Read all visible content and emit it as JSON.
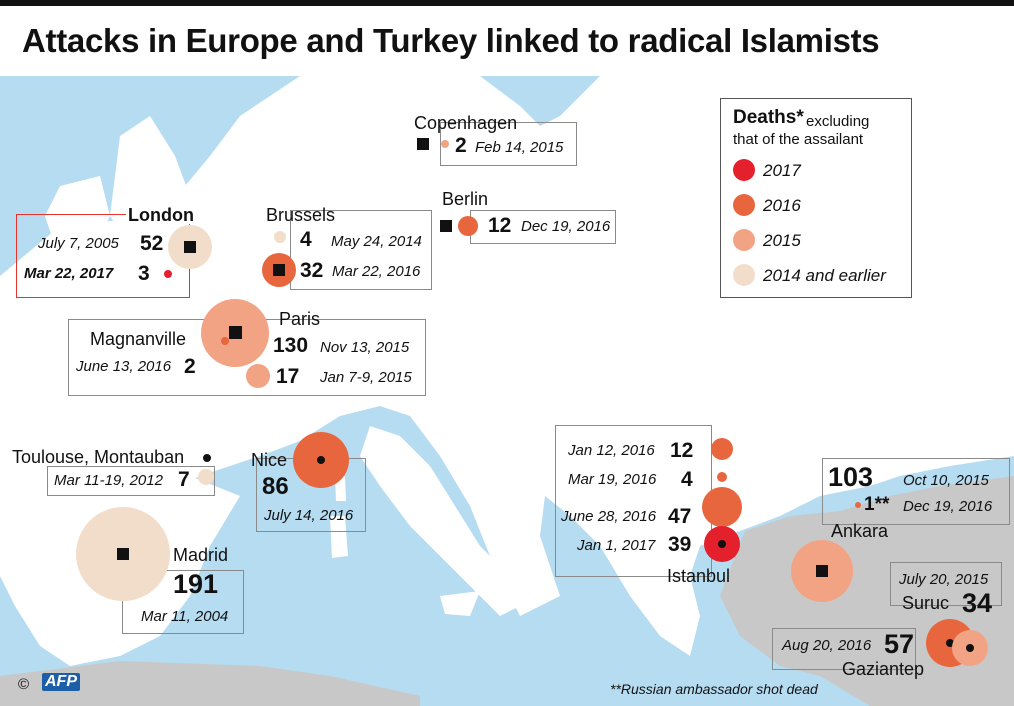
{
  "title": "Attacks in Europe and Turkey linked to radical Islamists",
  "colors": {
    "sea": "#b6dcf1",
    "land": "#ffffff",
    "turkey": "#c8c8c8",
    "y2017": "#e3202b",
    "y2016": "#e8663d",
    "y2015": "#f2a383",
    "y2014": "#f1ddc9"
  },
  "legend": {
    "title": "Deaths*",
    "subtitle_a": "excluding",
    "subtitle_b": "that of the assailant",
    "items": [
      {
        "label": "2017",
        "color": "#e3202b"
      },
      {
        "label": "2016",
        "color": "#e8663d"
      },
      {
        "label": "2015",
        "color": "#f2a383"
      },
      {
        "label": "2014 and earlier",
        "color": "#f1ddc9"
      }
    ]
  },
  "places": {
    "copenhagen": {
      "name": "Copenhagen",
      "count": "2",
      "date": "Feb 14, 2015"
    },
    "berlin": {
      "name": "Berlin",
      "count": "12",
      "date": "Dec 19, 2016"
    },
    "brussels": {
      "name": "Brussels",
      "count_a": "4",
      "date_a": "May 24, 2014",
      "count_b": "32",
      "date_b": "Mar 22, 2016"
    },
    "london": {
      "name": "London",
      "date_a": "July 7, 2005",
      "count_a": "52",
      "date_b": "Mar 22, 2017",
      "count_b": "3"
    },
    "paris": {
      "name": "Paris",
      "count_a": "130",
      "date_a": "Nov 13, 2015",
      "count_b": "17",
      "date_b": "Jan 7-9, 2015"
    },
    "magnanville": {
      "name": "Magnanville",
      "date": "June 13, 2016",
      "count": "2"
    },
    "toulouse": {
      "name": "Toulouse, Montauban",
      "date": "Mar 11-19, 2012",
      "count": "7"
    },
    "nice": {
      "name": "Nice",
      "count": "86",
      "date": "July 14, 2016"
    },
    "madrid": {
      "name": "Madrid",
      "count": "191",
      "date": "Mar 11, 2004"
    },
    "istanbul": {
      "name": "Istanbul",
      "events": [
        {
          "date": "Jan 12, 2016",
          "count": "12"
        },
        {
          "date": "Mar 19, 2016",
          "count": "4"
        },
        {
          "date": "June 28, 2016",
          "count": "47"
        },
        {
          "date": "Jan 1, 2017",
          "count": "39"
        }
      ]
    },
    "ankara": {
      "name": "Ankara",
      "count_a": "103",
      "date_a": "Oct 10, 2015",
      "count_b": "1**",
      "date_b": "Dec 19, 2016"
    },
    "suruc": {
      "name": "Suruc",
      "date": "July 20, 2015",
      "count": "34"
    },
    "gaziantep": {
      "name": "Gaziantep",
      "date": "Aug 20, 2016",
      "count": "57"
    }
  },
  "footnote": "**Russian ambassador shot dead",
  "credit": {
    "copyright": "©",
    "agency": "AFP"
  }
}
